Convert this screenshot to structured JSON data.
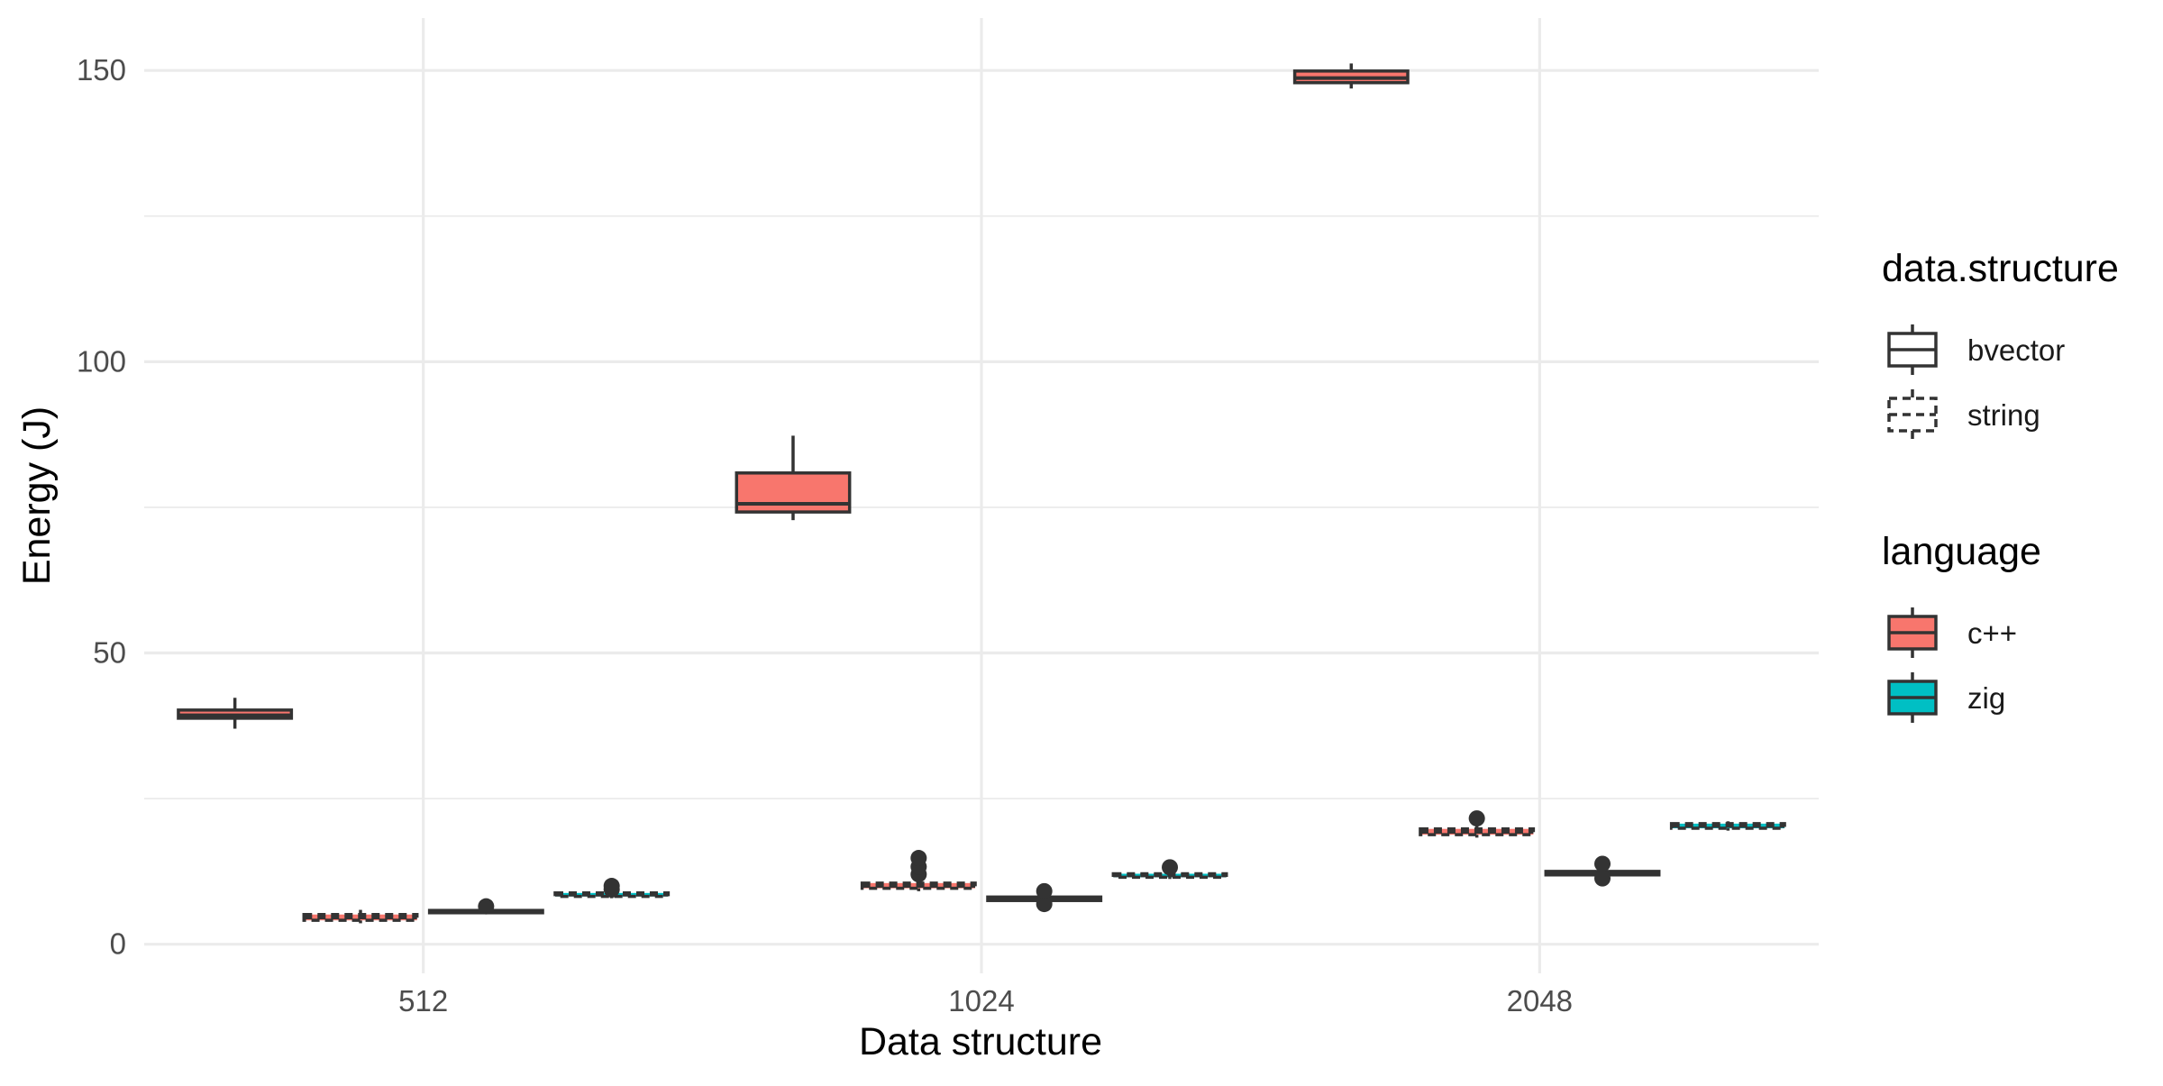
{
  "chart_data": {
    "type": "boxplot",
    "xlabel": "Data structure",
    "ylabel": "Energy (J)",
    "ylim": [
      -5,
      159
    ],
    "y_ticks": [
      0,
      50,
      100,
      150
    ],
    "categories": [
      "512",
      "1024",
      "2048"
    ],
    "grid": true,
    "legend_position": "right",
    "legends": [
      {
        "title": "data.structure",
        "items": [
          {
            "label": "bvector",
            "linetype": "solid"
          },
          {
            "label": "string",
            "linetype": "dashed"
          }
        ]
      },
      {
        "title": "language",
        "items": [
          {
            "label": "c++",
            "color": "#F8766D"
          },
          {
            "label": "zig",
            "color": "#00BFC4"
          }
        ]
      }
    ],
    "series": [
      {
        "language": "c++",
        "data_structure": "bvector",
        "color": "#F8766D",
        "linetype": "solid",
        "boxes": [
          {
            "category": "512",
            "min": 37.0,
            "q1": 38.8,
            "median": 39.3,
            "q3": 40.2,
            "max": 42.3,
            "outliers": []
          },
          {
            "category": "1024",
            "min": 72.8,
            "q1": 74.2,
            "median": 75.6,
            "q3": 80.9,
            "max": 87.3,
            "outliers": []
          },
          {
            "category": "2048",
            "min": 146.9,
            "q1": 147.9,
            "median": 148.7,
            "q3": 149.9,
            "max": 151.2,
            "outliers": []
          }
        ]
      },
      {
        "language": "c++",
        "data_structure": "string",
        "color": "#F8766D",
        "linetype": "dashed",
        "boxes": [
          {
            "category": "512",
            "min": 3.6,
            "q1": 4.1,
            "median": 4.6,
            "q3": 5.1,
            "max": 5.9,
            "outliers": []
          },
          {
            "category": "1024",
            "min": 9.1,
            "q1": 9.6,
            "median": 10.0,
            "q3": 10.5,
            "max": 11.0,
            "outliers": [
              12.0,
              13.3,
              14.8
            ]
          },
          {
            "category": "2048",
            "min": 18.3,
            "q1": 18.8,
            "median": 19.3,
            "q3": 19.8,
            "max": 20.3,
            "outliers": [
              21.6
            ]
          }
        ]
      },
      {
        "language": "zig",
        "data_structure": "bvector",
        "color": "#00BFC4",
        "linetype": "solid",
        "boxes": [
          {
            "category": "512",
            "min": 5.2,
            "q1": 5.4,
            "median": 5.6,
            "q3": 5.8,
            "max": 6.0,
            "outliers": [
              6.5
            ]
          },
          {
            "category": "1024",
            "min": 7.2,
            "q1": 7.5,
            "median": 7.8,
            "q3": 8.1,
            "max": 8.4,
            "outliers": [
              6.9,
              9.1
            ]
          },
          {
            "category": "2048",
            "min": 11.6,
            "q1": 11.9,
            "median": 12.2,
            "q3": 12.5,
            "max": 12.8,
            "outliers": [
              11.3,
              13.8
            ]
          }
        ]
      },
      {
        "language": "zig",
        "data_structure": "string",
        "color": "#00BFC4",
        "linetype": "dashed",
        "boxes": [
          {
            "category": "512",
            "min": 7.9,
            "q1": 8.2,
            "median": 8.5,
            "q3": 8.8,
            "max": 9.1,
            "outliers": [
              9.4,
              10.0
            ]
          },
          {
            "category": "1024",
            "min": 11.2,
            "q1": 11.5,
            "median": 11.8,
            "q3": 12.1,
            "max": 12.4,
            "outliers": [
              13.2
            ]
          },
          {
            "category": "2048",
            "min": 19.5,
            "q1": 19.9,
            "median": 20.3,
            "q3": 20.7,
            "max": 21.1,
            "outliers": []
          }
        ]
      }
    ]
  }
}
